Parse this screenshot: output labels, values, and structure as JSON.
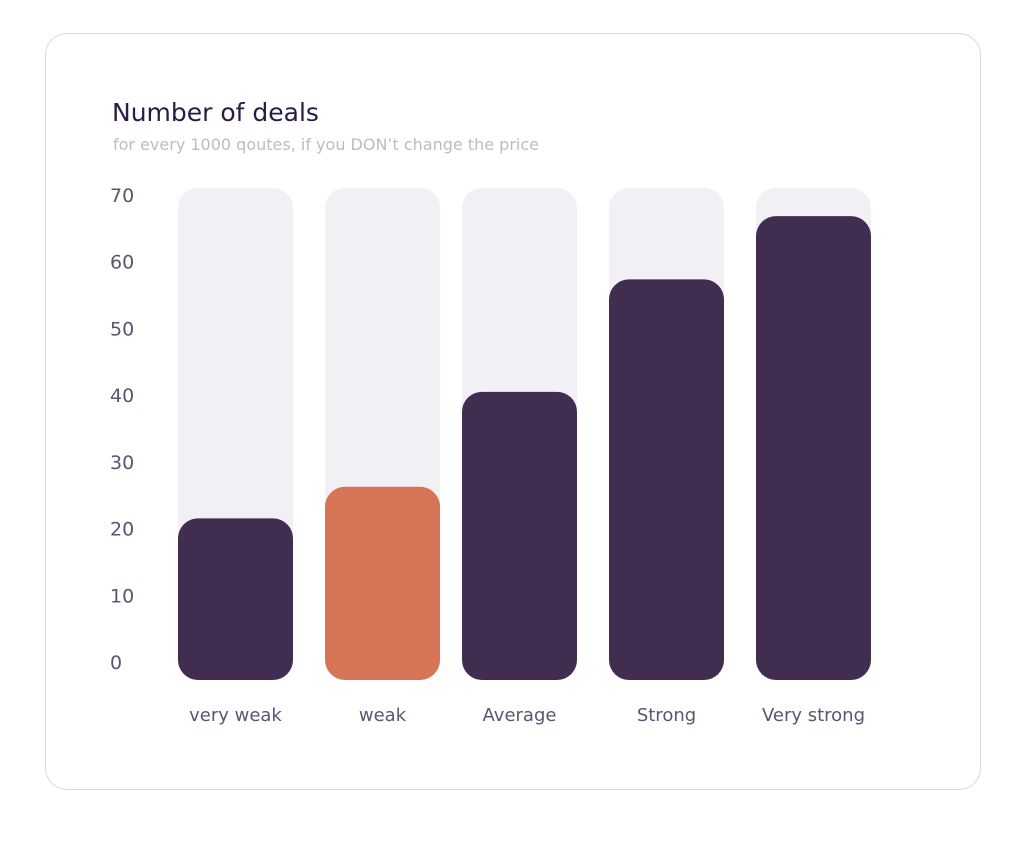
{
  "chart_data": {
    "type": "bar",
    "title": "Number of deals",
    "subtitle": "for every 1000 qoutes, if you DON’t change the price",
    "categories": [
      "very weak",
      "weak",
      "Average",
      "Strong",
      "Very strong"
    ],
    "values": [
      23,
      27.5,
      41,
      57,
      66
    ],
    "highlight_index": 1,
    "ylim": [
      0,
      70
    ],
    "yticks": [
      0,
      10,
      20,
      30,
      40,
      50,
      60,
      70
    ],
    "grid": false,
    "colors": {
      "bar": "#412d4f",
      "highlight": "#d67556",
      "track": "#f2f0f5"
    }
  }
}
